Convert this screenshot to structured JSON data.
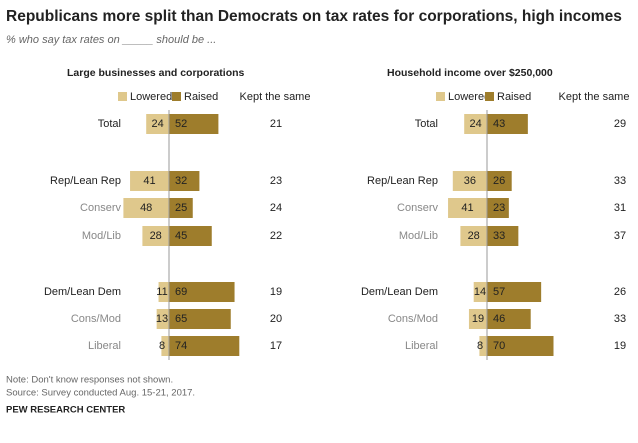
{
  "title": "Republicans more split than Democrats on tax rates for corporations, high incomes",
  "subtitle": "% who say tax rates on _____ should be ...",
  "note": "Note: Don't know responses not shown.",
  "source": "Source: Survey conducted Aug. 15-21, 2017.",
  "credit": "PEW RESEARCH CENTER",
  "chart_data": [
    {
      "type": "diverging_bar",
      "title": "Large businesses and corporations",
      "categories": [
        "Total",
        "Rep/Lean Rep",
        "Conserv",
        "Mod/Lib",
        "Dem/Lean Dem",
        "Cons/Mod",
        "Liberal"
      ],
      "series": [
        {
          "name": "Lowered",
          "color": "#dfc88c",
          "values": [
            24,
            41,
            48,
            28,
            11,
            13,
            8
          ]
        },
        {
          "name": "Raised",
          "color": "#9e7d2c",
          "values": [
            52,
            32,
            25,
            45,
            69,
            65,
            74
          ]
        },
        {
          "name": "Kept the same",
          "values": [
            21,
            23,
            24,
            22,
            19,
            20,
            17
          ]
        }
      ]
    },
    {
      "type": "diverging_bar",
      "title": "Household income over $250,000",
      "categories": [
        "Total",
        "Rep/Lean Rep",
        "Conserv",
        "Mod/Lib",
        "Dem/Lean Dem",
        "Cons/Mod",
        "Liberal"
      ],
      "series": [
        {
          "name": "Lowered",
          "color": "#dfc88c",
          "values": [
            24,
            36,
            41,
            28,
            14,
            19,
            8
          ]
        },
        {
          "name": "Raised",
          "color": "#9e7d2c",
          "values": [
            43,
            26,
            23,
            33,
            57,
            46,
            70
          ]
        },
        {
          "name": "Kept the same",
          "values": [
            29,
            33,
            31,
            37,
            26,
            33,
            19
          ]
        }
      ]
    }
  ]
}
